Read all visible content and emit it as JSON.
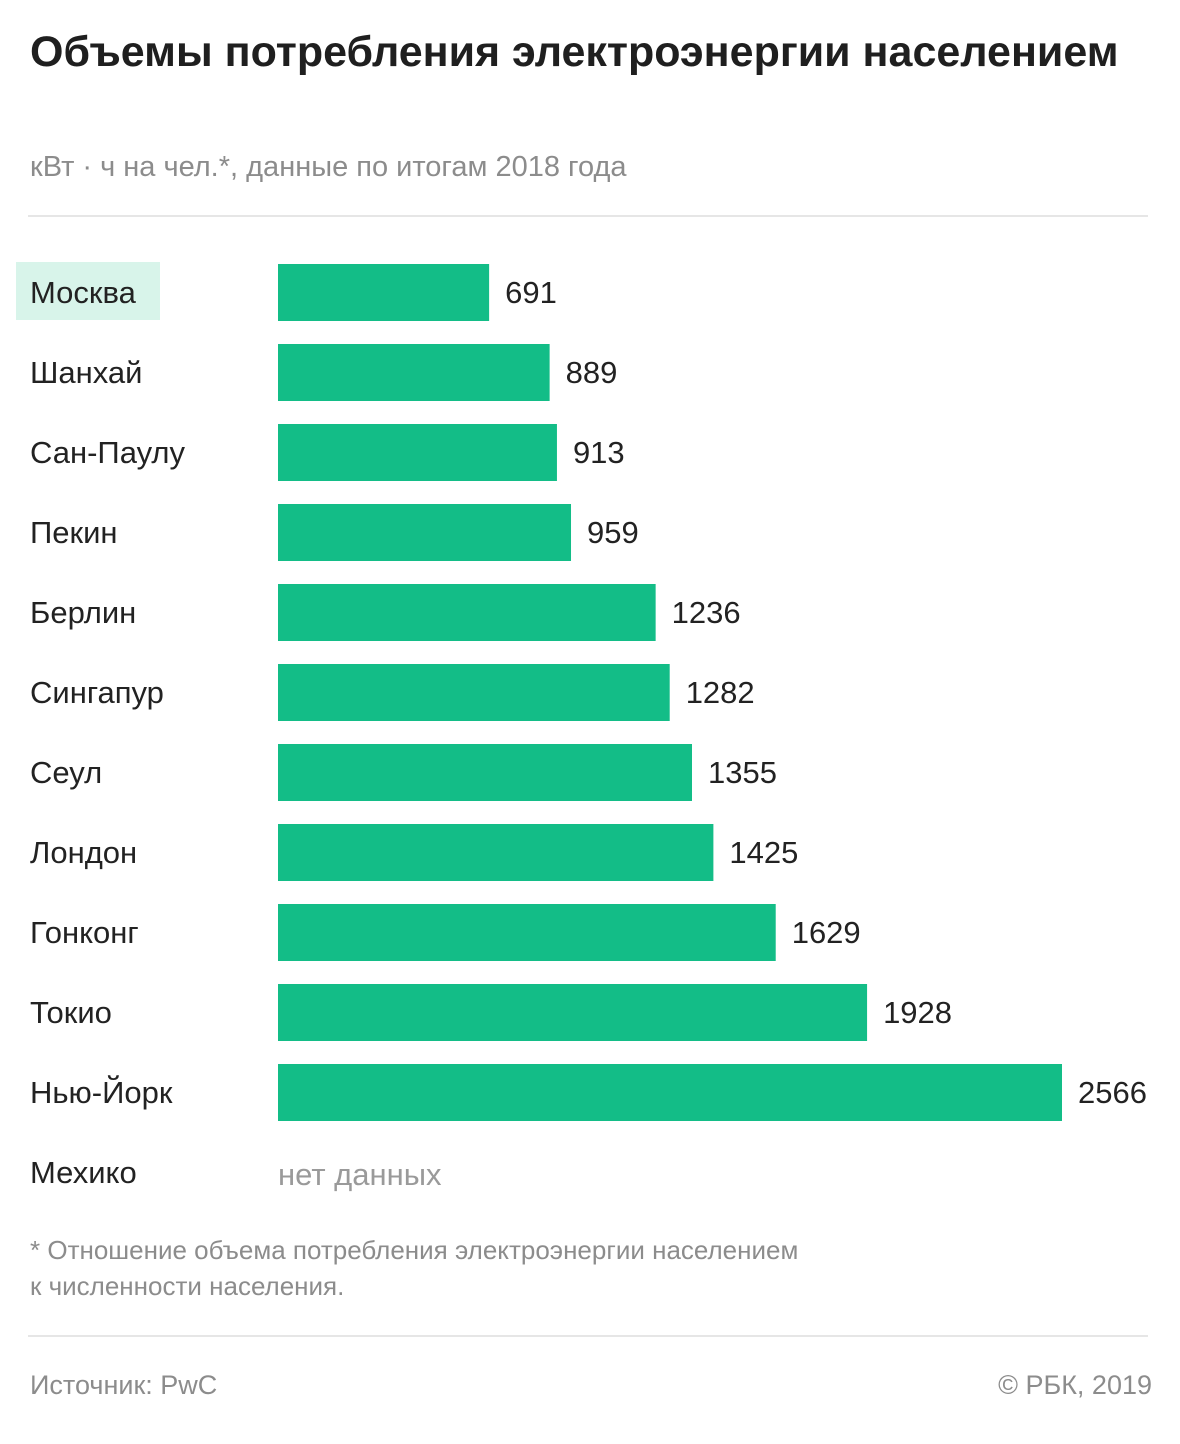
{
  "header": {
    "title": "Объемы потребления электроэнергии населением",
    "subtitle": "кВт · ч на чел.*, данные по итогам 2018 года"
  },
  "chart_data": {
    "type": "bar",
    "orientation": "horizontal",
    "title": "Объемы потребления электроэнергии населением",
    "subtitle": "кВт · ч на чел.*, данные по итогам 2018 года",
    "categories": [
      "Москва",
      "Шанхай",
      "Сан-Паулу",
      "Пекин",
      "Берлин",
      "Сингапур",
      "Сеул",
      "Лондон",
      "Гонконг",
      "Токио",
      "Нью-Йорк",
      "Мехико"
    ],
    "values": [
      691,
      889,
      913,
      959,
      1236,
      1282,
      1355,
      1425,
      1629,
      1928,
      2566,
      null
    ],
    "no_data_label": "нет данных",
    "highlighted_category": "Москва",
    "xlim": [
      0,
      2566
    ],
    "grid": false,
    "colors": {
      "bar": "#13bd87",
      "highlight_background": "#d8f4ea"
    }
  },
  "footer": {
    "footnote_line1": "* Отношение объема потребления электроэнергии населением",
    "footnote_line2": "к численности населения.",
    "source": "Источник: PwC",
    "copyright": "© РБК, 2019"
  }
}
